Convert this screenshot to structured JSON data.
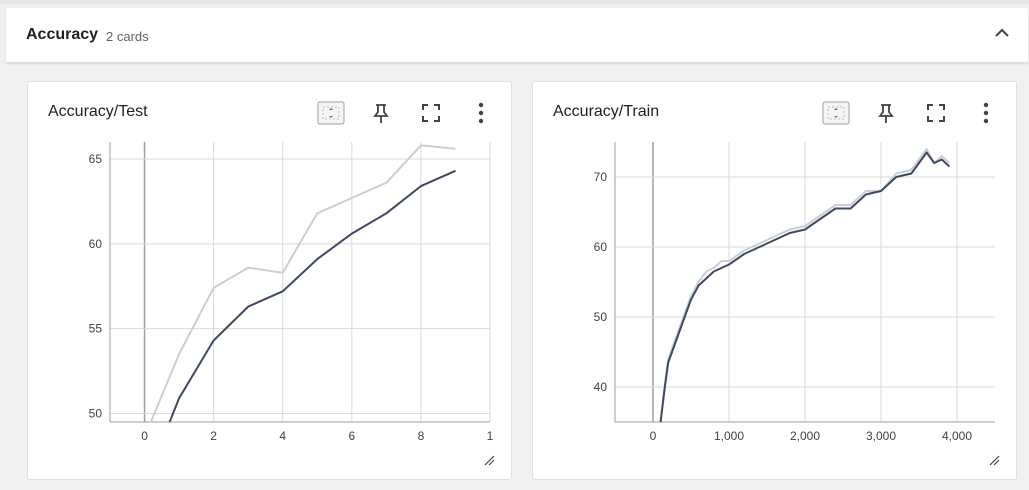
{
  "group": {
    "title": "Accuracy",
    "count": "2 cards",
    "collapse_icon": "chevron-up-icon"
  },
  "cards": [
    {
      "title": "Accuracy/Test",
      "tools": [
        "fit-domain-icon",
        "pin-icon",
        "fullscreen-icon",
        "more-vert-icon"
      ]
    },
    {
      "title": "Accuracy/Train",
      "tools": [
        "fit-domain-icon",
        "pin-icon",
        "fullscreen-icon",
        "more-vert-icon"
      ]
    }
  ],
  "colors": {
    "smoothed": "#3e4a61",
    "raw": "#c9ced8",
    "grid": "#dadada",
    "axis": "#9e9e9e"
  },
  "chart_data": [
    {
      "type": "line",
      "x_ticks": [
        "0",
        "2",
        "4",
        "6",
        "8",
        "1"
      ],
      "y_ticks": [
        "55",
        "60",
        "65",
        "50"
      ],
      "xlim": [
        -1,
        10
      ],
      "ylim": [
        49.5,
        66
      ],
      "series": [
        {
          "x": [
            0,
            1,
            2,
            3,
            4,
            5,
            6,
            7,
            8,
            9
          ],
          "values": [
            48.6,
            53.5,
            57.4,
            58.6,
            58.3,
            61.8,
            62.7,
            63.6,
            65.8,
            65.6
          ]
        },
        {
          "x": [
            0,
            1,
            2,
            3,
            4,
            5,
            6,
            7,
            8,
            9
          ],
          "values": [
            45.8,
            50.9,
            54.3,
            56.3,
            57.2,
            59.1,
            60.6,
            61.8,
            63.4,
            64.3
          ]
        }
      ]
    },
    {
      "type": "line",
      "x_ticks": [
        "0",
        "1,000",
        "2,000",
        "3,000",
        "4,000"
      ],
      "y_ticks": [
        "40",
        "50",
        "60",
        "70"
      ],
      "xlim": [
        -500,
        4500
      ],
      "ylim": [
        35,
        75
      ],
      "series": [
        {
          "x": [
            100,
            150,
            200,
            300,
            400,
            500,
            600,
            700,
            800,
            900,
            1000,
            1200,
            1400,
            1600,
            1800,
            2000,
            2200,
            2400,
            2600,
            2800,
            3000,
            3200,
            3400,
            3600,
            3700,
            3800,
            3900
          ],
          "values": [
            35,
            40,
            44,
            47,
            50,
            53,
            55,
            56.5,
            57,
            58,
            58,
            59.5,
            60.5,
            61.5,
            62.5,
            63,
            64.5,
            66,
            66,
            68,
            68,
            70.5,
            71,
            74,
            72,
            73,
            72
          ]
        },
        {
          "x": [
            100,
            150,
            200,
            300,
            400,
            500,
            600,
            700,
            800,
            900,
            1000,
            1200,
            1400,
            1600,
            1800,
            2000,
            2200,
            2400,
            2600,
            2800,
            3000,
            3200,
            3400,
            3600,
            3700,
            3800,
            3900
          ],
          "values": [
            35,
            39.5,
            43.5,
            46.5,
            49.5,
            52.5,
            54.5,
            55.5,
            56.5,
            57,
            57.5,
            59,
            60,
            61,
            62,
            62.5,
            64,
            65.5,
            65.5,
            67.5,
            68,
            70,
            70.5,
            73.5,
            72,
            72.5,
            71.5
          ]
        }
      ]
    }
  ]
}
